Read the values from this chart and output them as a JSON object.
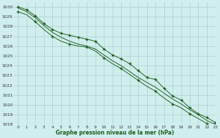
{
  "title": "Graphe pression niveau de la mer (hPa)",
  "background_color": "#d0eeee",
  "grid_color": "#aacccc",
  "line_color": "#1a5c1a",
  "x_hours": [
    0,
    1,
    2,
    3,
    4,
    5,
    6,
    7,
    8,
    9,
    10,
    11,
    12,
    13,
    14,
    15,
    16,
    17,
    18,
    19,
    20,
    21,
    22,
    23
  ],
  "line_top": [
    1030.0,
    1029.7,
    1029.1,
    1028.3,
    1027.7,
    1027.3,
    1027.1,
    1026.9,
    1026.7,
    1026.5,
    1025.7,
    1025.1,
    1024.7,
    1024.2,
    1023.5,
    1022.8,
    1022.6,
    1021.7,
    1020.9,
    1020.5,
    1019.7,
    1019.1,
    1018.7,
    1018.2
  ],
  "line_mid": [
    1029.9,
    1029.5,
    1028.9,
    1028.1,
    1027.4,
    1026.9,
    1026.5,
    1026.2,
    1026.0,
    1025.7,
    1025.1,
    1024.5,
    1024.0,
    1023.4,
    1022.8,
    1022.3,
    1021.8,
    1021.2,
    1020.6,
    1020.1,
    1019.5,
    1019.0,
    1018.4,
    1018.0
  ],
  "line_bot": [
    1029.5,
    1029.2,
    1028.5,
    1027.7,
    1027.0,
    1026.5,
    1026.2,
    1026.0,
    1025.9,
    1025.5,
    1024.8,
    1024.2,
    1023.7,
    1023.1,
    1022.5,
    1021.9,
    1021.4,
    1020.7,
    1020.1,
    1019.7,
    1019.1,
    1018.6,
    1018.1,
    1017.8
  ],
  "ylim": [
    1018,
    1030.5
  ],
  "ytick_min": 1018,
  "ytick_max": 1030,
  "marker": "+"
}
